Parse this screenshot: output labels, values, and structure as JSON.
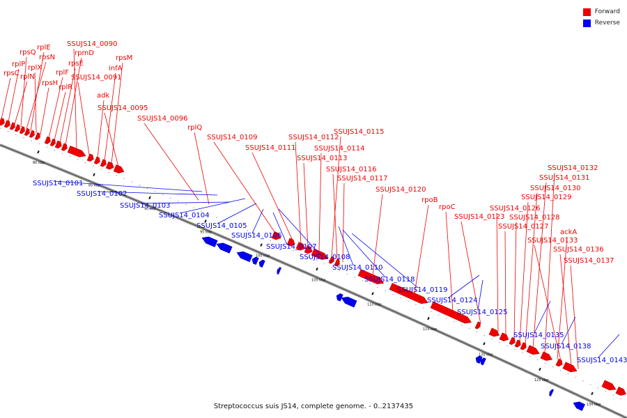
{
  "caption": "Streptococcus suis JS14, complete genome. - 0..2137435",
  "colors": {
    "forward": "#ee0000",
    "reverse": "#0000ee",
    "axis": "#888888"
  },
  "legend": [
    {
      "label": "Forward",
      "color": "#ee0000"
    },
    {
      "label": "Reverse",
      "color": "#0000ee"
    }
  ],
  "scale_ticks": [
    "80 kbp",
    "85 kbp",
    "90 kbp",
    "95 kbp",
    "100 kbp",
    "105 kbp",
    "110 kbp",
    "115 kbp",
    "120 kbp",
    "125 kbp",
    "130 kbp"
  ],
  "forward_labels": [
    "rpsC",
    "rplP",
    "rplN",
    "rpsQ",
    "rpsN",
    "rplE",
    "rplX",
    "rpsH",
    "rplF",
    "rplR",
    "rpsE",
    "rpmD",
    "SSUJS14_0090",
    "SSUJS14_0091",
    "adk",
    "infA",
    "rpsM",
    "SSUJS14_0095",
    "SSUJS14_0096",
    "rplQ",
    "SSUJS14_0109",
    "SSUJS14_0111",
    "SSUJS14_0112",
    "SSUJS14_0113",
    "SSUJS14_0114",
    "SSUJS14_0115",
    "SSUJS14_0116",
    "SSUJS14_0117",
    "SSUJS14_0120",
    "rpoB",
    "rpoC",
    "SSUJS14_0123",
    "SSUJS14_0126",
    "SSUJS14_0127",
    "SSUJS14_0128",
    "SSUJS14_0129",
    "SSUJS14_0130",
    "SSUJS14_0131",
    "SSUJS14_0132",
    "ackA",
    "SSUJS14_0133",
    "SSUJS14_0136",
    "SSUJS14_0137"
  ],
  "reverse_labels": [
    "SSUJS14_0101",
    "SSUJS14_0102",
    "SSUJS14_0103",
    "SSUJS14_0104",
    "SSUJS14_0105",
    "SSUJS14_0106",
    "SSUJS14_0107",
    "SSUJS14_0108",
    "SSUJS14_0110",
    "SSUJS14_0118",
    "SSUJS14_0119",
    "SSUJS14_0124",
    "SSUJS14_0125",
    "SSUJS14_0135",
    "SSUJS14_0138",
    "SSUJS14_0143"
  ]
}
